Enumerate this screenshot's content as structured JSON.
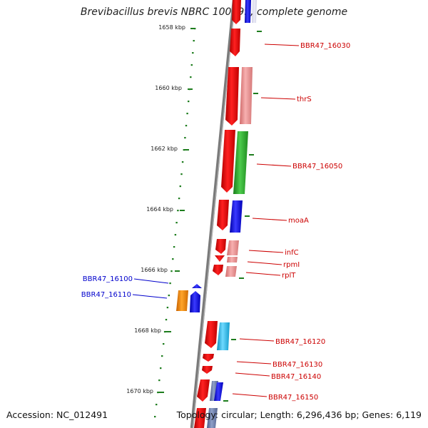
{
  "header": {
    "title": "Brevibacillus brevis NBRC 100599, complete genome"
  },
  "footer": {
    "accession": "Accession: NC_012491",
    "summary": "Topology: circular; Length: 6,296,436 bp; Genes: 6,119"
  },
  "colors": {
    "ruler_tick": "#1e7d1e",
    "backbone": "#7a7a7a",
    "label_red": "#cc0000",
    "label_blue": "#0000cc",
    "gene_red": "#ee0000",
    "gene_pink": "#e88a8a",
    "gene_green": "#2fa82f",
    "gene_blue": "#1010ee",
    "gene_cyan": "#19b6e6",
    "gene_orange": "#f58a0a"
  },
  "ruler": {
    "labels": [
      "1658 kbp",
      "1660 kbp",
      "1662 kbp",
      "1664 kbp",
      "1666 kbp",
      "1668 kbp",
      "1670 kbp"
    ]
  },
  "gene_labels": {
    "right": [
      "BBR47_16030",
      "thrS",
      "BBR47_16050",
      "moaA",
      "infC",
      "rpmI",
      "rplT",
      "BBR47_16120",
      "BBR47_16130",
      "BBR47_16140",
      "BBR47_16150"
    ],
    "left": [
      "BBR47_16100",
      "BBR47_16110"
    ]
  }
}
